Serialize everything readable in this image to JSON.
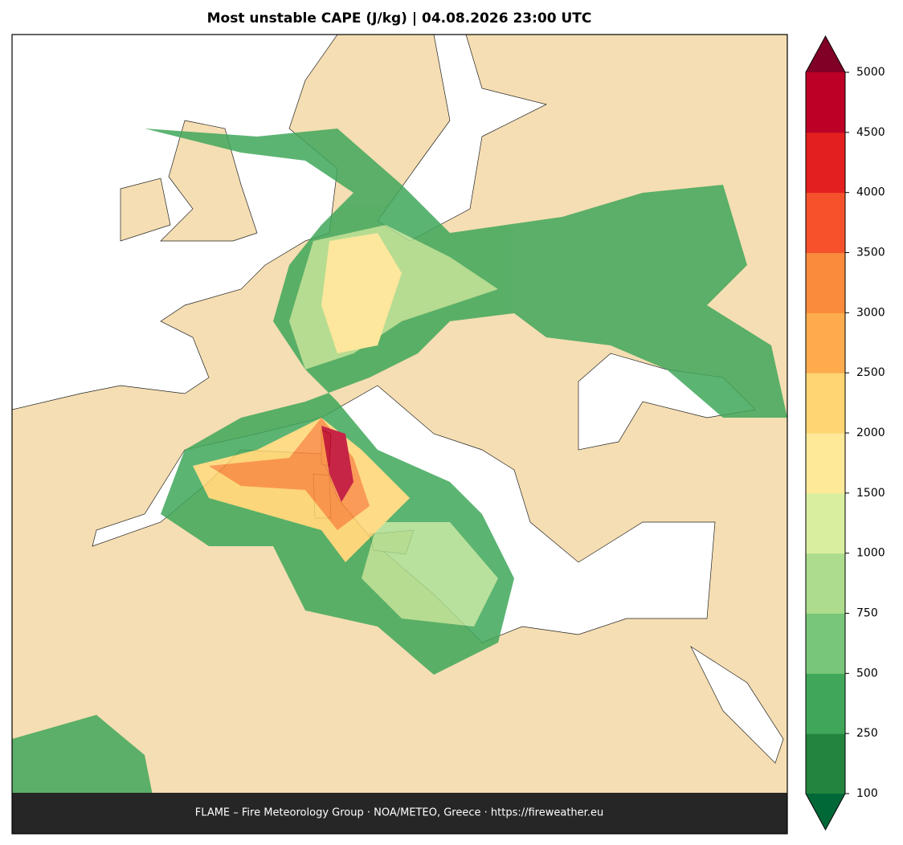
{
  "title": "Most unstable CAPE (J/kg)  |  04.08.2026 23:00 UTC",
  "footer": "FLAME – Fire Meteorology Group · NOA/METEO, Greece · https://fireweather.eu",
  "colorbar": {
    "ticks": [
      100,
      250,
      500,
      750,
      1000,
      1500,
      2000,
      2500,
      3000,
      3500,
      4000,
      4500,
      5000
    ],
    "colors": [
      "#23843f",
      "#40a75a",
      "#78c679",
      "#acdc8c",
      "#d9ef9f",
      "#fee999",
      "#fed572",
      "#fdab4d",
      "#fa8a3c",
      "#f5522b",
      "#e31f1f",
      "#bd0026"
    ],
    "under_color": "#006837",
    "over_color": "#800026"
  }
}
